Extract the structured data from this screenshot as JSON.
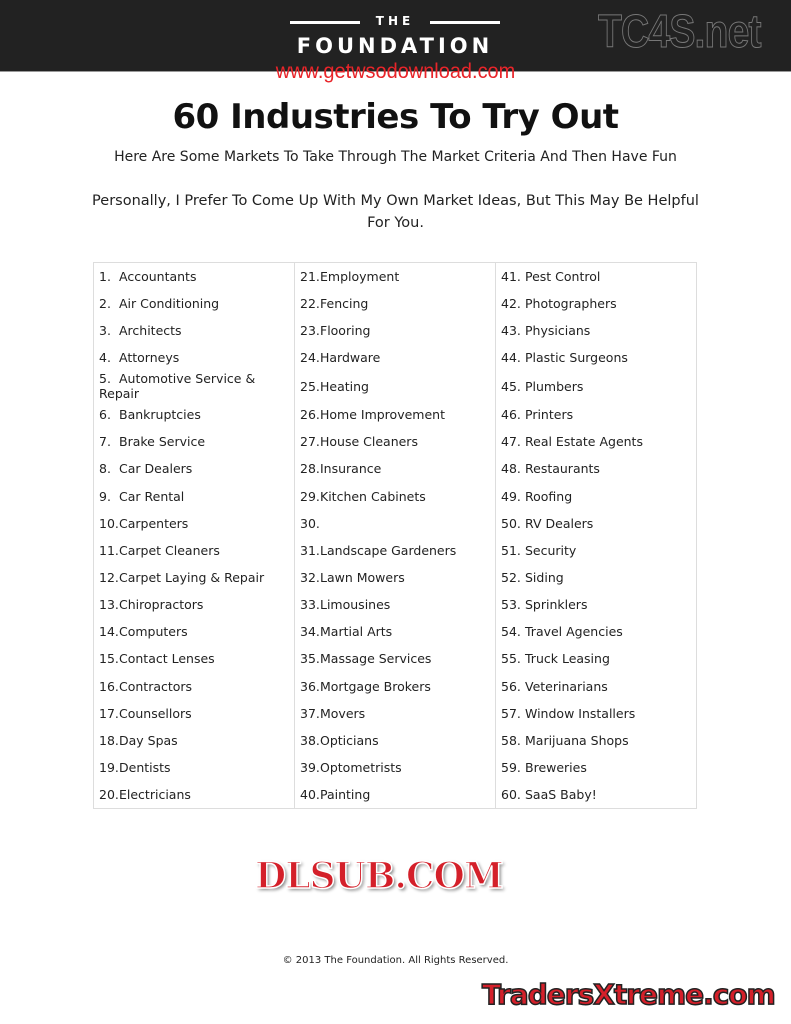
{
  "header": {
    "logo_top": "THE",
    "logo_main": "FOUNDATION"
  },
  "watermarks": {
    "tc4s": "TC4S.net",
    "url": "www.getwsodownload.com",
    "dlsub": "DLSUB.COM",
    "traders": "TradersXtreme.com"
  },
  "title": "60 Industries To Try Out",
  "subtitle": "Here Are Some Markets To Take Through The Market Criteria And Then Have Fun",
  "note_line1": "Personally, I Prefer To Come Up With My Own Market Ideas, But This May Be Helpful",
  "note_line2": "For You.",
  "columns": [
    [
      "Accountants",
      "Air Conditioning",
      "Architects",
      "Attorneys",
      "Automotive Service & Repair",
      "Bankruptcies",
      "Brake Service",
      "Car Dealers",
      "Car Rental",
      "Carpenters",
      "Carpet Cleaners",
      "Carpet Laying & Repair",
      "Chiropractors",
      "Computers",
      "Contact Lenses",
      "Contractors",
      "Counsellors",
      "Day Spas",
      "Dentists",
      "Electricians"
    ],
    [
      "Employment",
      "Fencing",
      "Flooring",
      "Hardware",
      "Heating",
      "Home Improvement",
      "House Cleaners",
      "Insurance",
      "Kitchen Cabinets",
      "",
      "Landscape Gardeners",
      "Lawn Mowers",
      "Limousines",
      "Martial Arts",
      "Massage Services",
      "Mortgage Brokers",
      "Movers",
      "Opticians",
      "Optometrists",
      "Painting"
    ],
    [
      "Pest Control",
      "Photographers",
      "Physicians",
      "Plastic Surgeons",
      "Plumbers",
      "Printers",
      "Real Estate Agents",
      "Restaurants",
      "Roofing",
      "RV Dealers",
      "Security",
      "Siding",
      "Sprinklers",
      "Travel Agencies",
      "Truck Leasing",
      "Veterinarians",
      "Window Installers",
      "Marijuana Shops",
      "Breweries",
      "SaaS Baby!"
    ]
  ],
  "footer": "© 2013 The Foundation. All Rights Reserved."
}
